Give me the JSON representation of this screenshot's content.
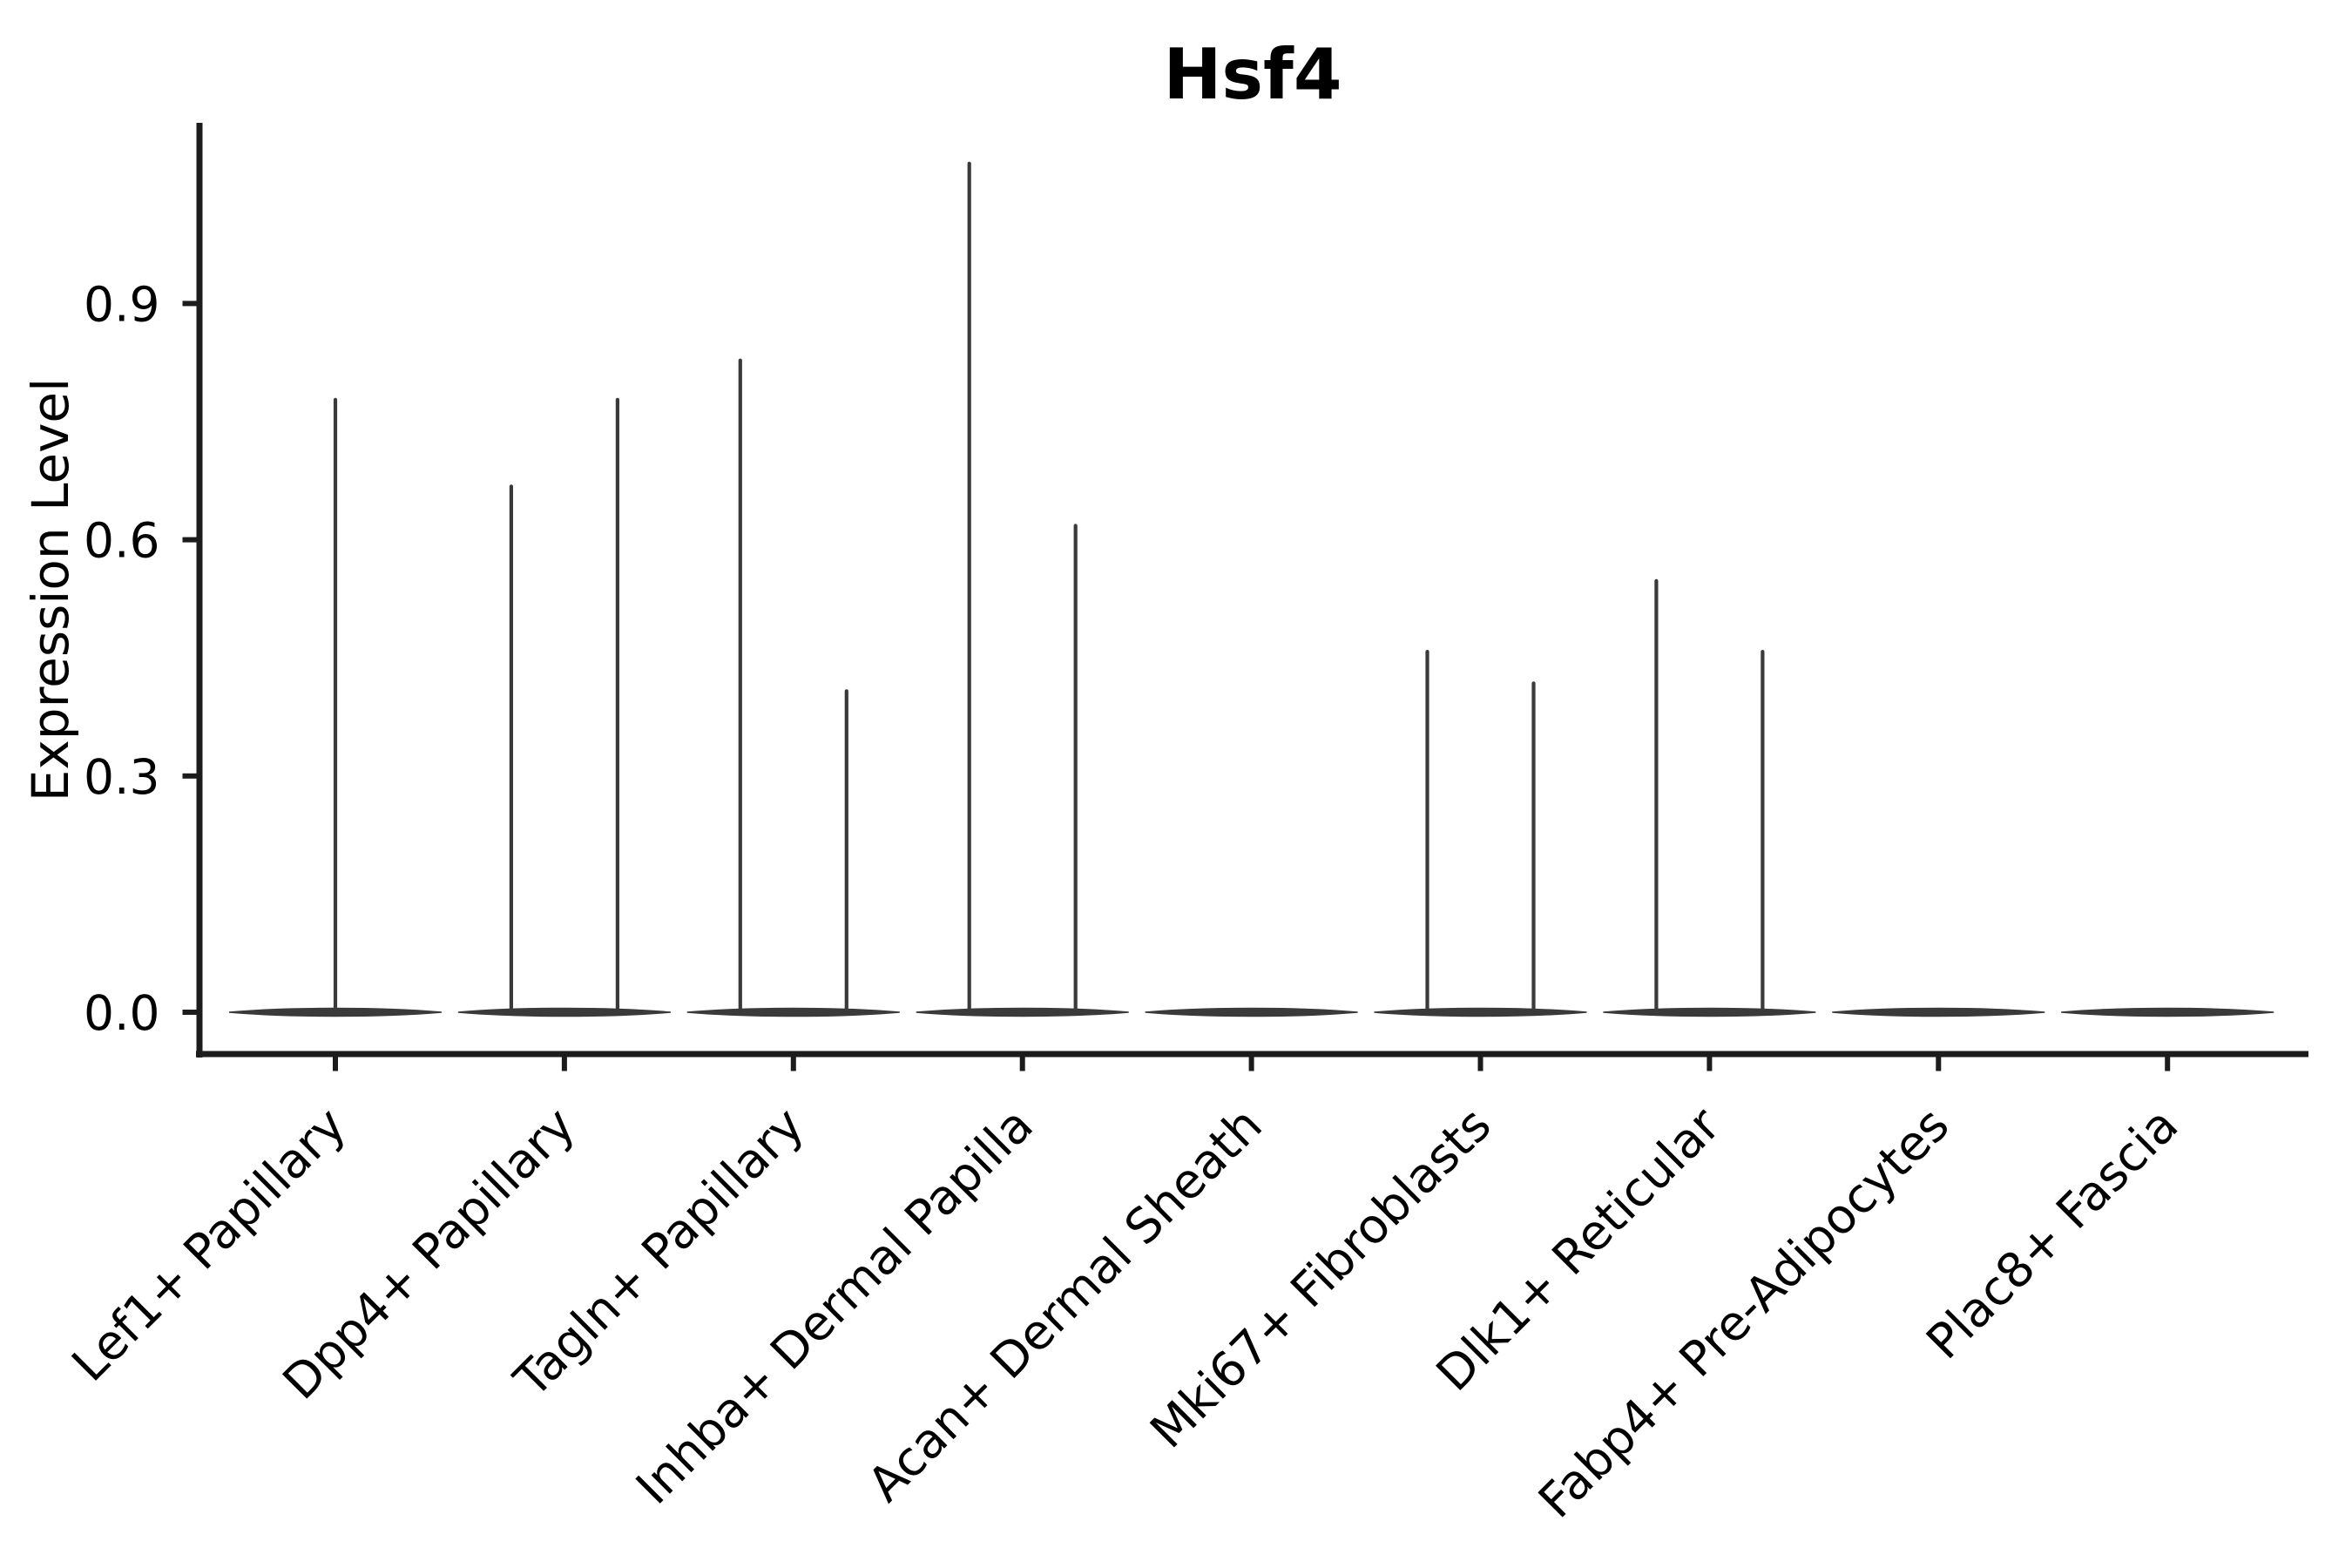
{
  "chart_data": {
    "type": "violin",
    "title": "Hsf4",
    "xlabel": "",
    "ylabel": "Expression Level",
    "grid": false,
    "legend": null,
    "background_color": "#ffffff",
    "x_tick_rotation": 45,
    "ylim": [
      -0.053,
      1.13
    ],
    "yticks": [
      {
        "label": "0.0",
        "value": 0.0
      },
      {
        "label": "0.3",
        "value": 0.3
      },
      {
        "label": "0.6",
        "value": 0.6
      },
      {
        "label": "0.9",
        "value": 0.9
      }
    ],
    "categories": [
      "Lef1+ Papillary",
      "Dpp4+ Papillary",
      "Tagln+ Papillary",
      "Inhba+ Dermal Papilla",
      "Acan+ Dermal Sheath",
      "Mki67+ Fibroblasts",
      "Dlk1+ Reticular",
      "Fabp4+ Pre-Adipocytes",
      "Plac8+ Fascia"
    ],
    "violins": [
      {
        "category": "Lef1+ Papillary",
        "base_max": 0.0,
        "spikes": [
          {
            "offset": 0.0,
            "max": 0.78
          }
        ]
      },
      {
        "category": "Dpp4+ Papillary",
        "base_max": 0.0,
        "spikes": [
          {
            "offset": -0.232,
            "max": 0.67
          },
          {
            "offset": 0.232,
            "max": 0.78
          }
        ]
      },
      {
        "category": "Tagln+ Papillary",
        "base_max": 0.0,
        "spikes": [
          {
            "offset": -0.232,
            "max": 0.83
          },
          {
            "offset": 0.232,
            "max": 0.41
          }
        ]
      },
      {
        "category": "Inhba+ Dermal Papilla",
        "base_max": 0.0,
        "spikes": [
          {
            "offset": -0.232,
            "max": 1.08
          },
          {
            "offset": 0.232,
            "max": 0.62
          }
        ]
      },
      {
        "category": "Acan+ Dermal Sheath",
        "base_max": 0.0,
        "spikes": []
      },
      {
        "category": "Mki67+ Fibroblasts",
        "base_max": 0.0,
        "spikes": [
          {
            "offset": -0.232,
            "max": 0.46
          },
          {
            "offset": 0.232,
            "max": 0.42
          }
        ]
      },
      {
        "category": "Dlk1+ Reticular",
        "base_max": 0.0,
        "spikes": [
          {
            "offset": -0.232,
            "max": 0.55
          },
          {
            "offset": 0.232,
            "max": 0.46
          }
        ]
      },
      {
        "category": "Fabp4+ Pre-Adipocytes",
        "base_max": 0.0,
        "spikes": []
      },
      {
        "category": "Plac8+ Fascia",
        "base_max": 0.0,
        "spikes": []
      }
    ],
    "colors": {
      "axis": "#1c1c1c",
      "violin": "#3a3a3a",
      "text": "#000000"
    }
  }
}
